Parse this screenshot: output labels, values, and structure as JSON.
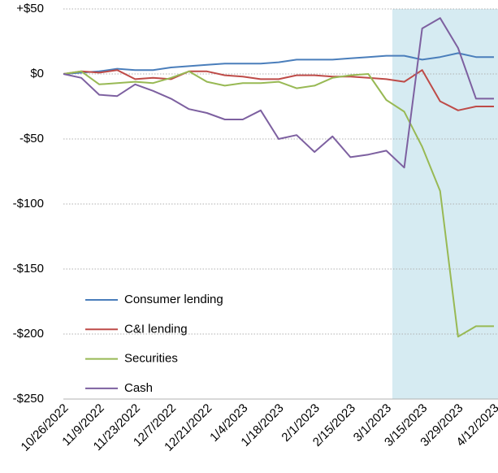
{
  "chart_data": {
    "type": "line",
    "categories": [
      "10/26/2022",
      null,
      "11/9/2022",
      null,
      "11/23/2022",
      null,
      "12/7/2022",
      null,
      "12/21/2022",
      null,
      "1/4/2023",
      null,
      "1/18/2023",
      null,
      "2/1/2023",
      null,
      "2/15/2023",
      null,
      "3/1/2023",
      null,
      "3/15/2023",
      null,
      "3/29/2023",
      null,
      "4/12/2023"
    ],
    "series": [
      {
        "name": "Consumer lending",
        "color": "#4a7ebb",
        "values": [
          0,
          1,
          2,
          4,
          3,
          3,
          5,
          6,
          7,
          8,
          8,
          8,
          9,
          11,
          11,
          11,
          12,
          13,
          14,
          14,
          11,
          13,
          16,
          13,
          13
        ]
      },
      {
        "name": "C&I lending",
        "color": "#be4b48",
        "values": [
          0,
          2,
          1,
          3,
          -4,
          -3,
          -4,
          2,
          2,
          -1,
          -2,
          -4,
          -4,
          -1,
          -1,
          -2,
          -2,
          -3,
          -4,
          -6,
          3,
          -21,
          -28,
          -25,
          -25
        ]
      },
      {
        "name": "Securities",
        "color": "#98b954",
        "values": [
          0,
          2,
          -8,
          -7,
          -6,
          -7,
          -3,
          2,
          -6,
          -9,
          -7,
          -7,
          -6,
          -11,
          -9,
          -3,
          -1,
          0,
          -20,
          -29,
          -56,
          -90,
          -202,
          -194,
          -194
        ]
      },
      {
        "name": "Cash",
        "color": "#7d60a0",
        "values": [
          0,
          -3,
          -16,
          -17,
          -8,
          -13,
          -19,
          -27,
          -30,
          -35,
          -35,
          -28,
          -50,
          -47,
          -60,
          -48,
          -64,
          -62,
          -59,
          -72,
          35,
          43,
          20,
          -19,
          -19
        ]
      }
    ],
    "ylim": [
      -250,
      50
    ],
    "yticks": [
      {
        "value": 50,
        "label": "+$50"
      },
      {
        "value": 0,
        "label": "$0"
      },
      {
        "value": -50,
        "label": "-$50"
      },
      {
        "value": -100,
        "label": "-$100"
      },
      {
        "value": -150,
        "label": "-$150"
      },
      {
        "value": -200,
        "label": "-$200"
      },
      {
        "value": -250,
        "label": "-$250"
      }
    ],
    "grid": true,
    "legend": "lower-left"
  }
}
